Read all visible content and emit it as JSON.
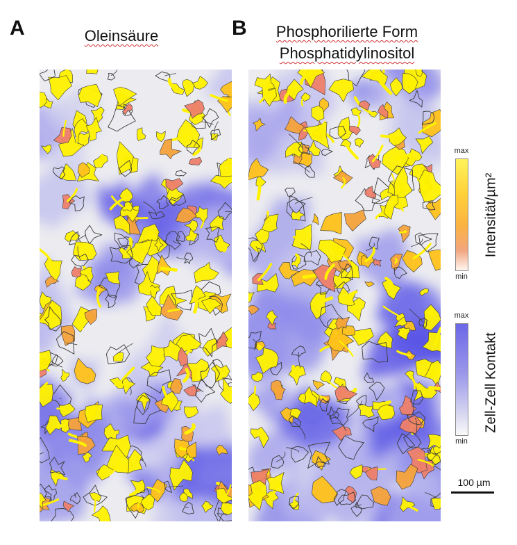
{
  "panel_a": {
    "letter": "A",
    "title_line1": "Oleinsäure"
  },
  "panel_b": {
    "letter": "B",
    "title_line1": "Phosphorilierte Form",
    "title_line2": "Phosphatidylinositol"
  },
  "intensity_colorbar": {
    "max_label": "max",
    "min_label": "min",
    "axis_label": "Intensität/µm²",
    "colors": [
      "#fff35a",
      "#ffd23a",
      "#fbb243",
      "#f2a57e",
      "#fff7f2"
    ]
  },
  "contact_colorbar": {
    "max_label": "max",
    "min_label": "min",
    "axis_label": "Zell-Zell Kontakt",
    "colors": [
      "#6b67e8",
      "#9b98ea",
      "#d6d5f0",
      "#fafafa"
    ]
  },
  "scale_bar": {
    "label": "100 µm"
  },
  "palette": {
    "background": "#ececf0",
    "contact_high": "#5a55e6",
    "contact_mid": "#8e8bea",
    "contact_low": "#c2c0ee",
    "cell_yellow": "#fff200",
    "cell_gold": "#ffc21a",
    "cell_orange": "#f5a23a",
    "cell_salmon": "#ee7f6a",
    "cell_outline": "#3a3a3a"
  }
}
